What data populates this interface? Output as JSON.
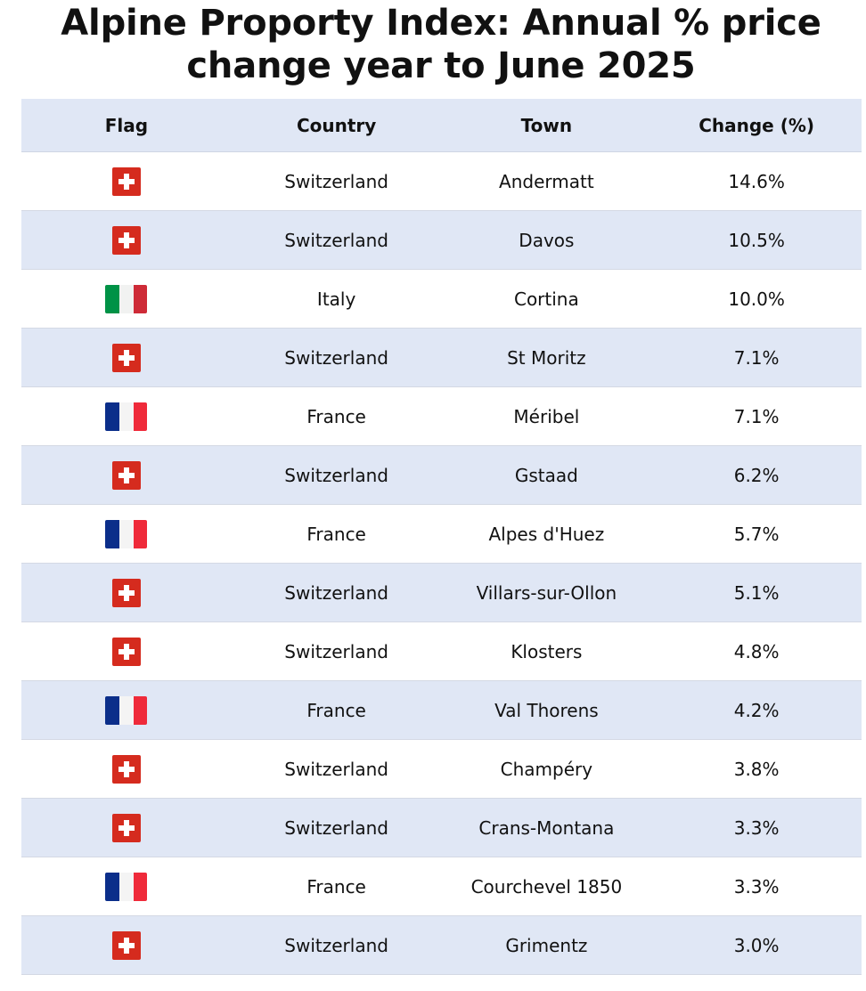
{
  "title": {
    "line1": "Alpine Proporty Index: Annual % price",
    "line2": "change year to June 2025"
  },
  "chart_data": {
    "type": "table",
    "title": "Alpine Proporty Index: Annual % price change year to June 2025",
    "columns": [
      "Flag",
      "Country",
      "Town",
      "Change (%)"
    ],
    "rows": [
      {
        "flag": "switzerland-flag-icon",
        "country": "Switzerland",
        "town": "Andermatt",
        "change": "14.6%"
      },
      {
        "flag": "switzerland-flag-icon",
        "country": "Switzerland",
        "town": "Davos",
        "change": "10.5%"
      },
      {
        "flag": "italy-flag-icon",
        "country": "Italy",
        "town": "Cortina",
        "change": "10.0%"
      },
      {
        "flag": "switzerland-flag-icon",
        "country": "Switzerland",
        "town": "St Moritz",
        "change": "7.1%"
      },
      {
        "flag": "france-flag-icon",
        "country": "France",
        "town": "Méribel",
        "change": "7.1%"
      },
      {
        "flag": "switzerland-flag-icon",
        "country": "Switzerland",
        "town": "Gstaad",
        "change": "6.2%"
      },
      {
        "flag": "france-flag-icon",
        "country": "France",
        "town": "Alpes d'Huez",
        "change": "5.7%"
      },
      {
        "flag": "switzerland-flag-icon",
        "country": "Switzerland",
        "town": "Villars-sur-Ollon",
        "change": "5.1%"
      },
      {
        "flag": "switzerland-flag-icon",
        "country": "Switzerland",
        "town": "Klosters",
        "change": "4.8%"
      },
      {
        "flag": "france-flag-icon",
        "country": "France",
        "town": "Val Thorens",
        "change": "4.2%"
      },
      {
        "flag": "switzerland-flag-icon",
        "country": "Switzerland",
        "town": "Champéry",
        "change": "3.8%"
      },
      {
        "flag": "switzerland-flag-icon",
        "country": "Switzerland",
        "town": "Crans-Montana",
        "change": "3.3%"
      },
      {
        "flag": "france-flag-icon",
        "country": "France",
        "town": "Courchevel 1850",
        "change": "3.3%"
      },
      {
        "flag": "switzerland-flag-icon",
        "country": "Switzerland",
        "town": "Grimentz",
        "change": "3.0%"
      }
    ]
  },
  "colors": {
    "header_bg": "#e0e7f5",
    "alt_row_bg": "#e0e7f5",
    "swiss_red": "#d52b1e",
    "italy_green": "#009246",
    "italy_white": "#f1f2f1",
    "italy_red": "#ce2b37",
    "france_blue": "#0b2e8a",
    "france_white": "#f4f4f4",
    "france_red": "#ef2a3a"
  }
}
